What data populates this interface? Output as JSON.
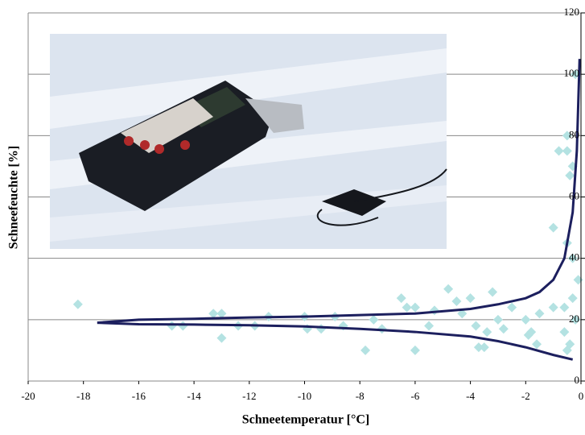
{
  "chart_data": {
    "type": "scatter",
    "xlabel": "Schneetemperatur [°C]",
    "ylabel": "Schneefeuchte [%]",
    "xlim": [
      -20,
      0
    ],
    "ylim": [
      0,
      120
    ],
    "xticks": [
      -20,
      -18,
      -16,
      -14,
      -12,
      -10,
      -8,
      -6,
      -4,
      -2,
      0
    ],
    "yticks": [
      0,
      20,
      40,
      60,
      80,
      100,
      120
    ],
    "grid": true,
    "series": [
      {
        "type": "scatter",
        "color": "#b4e2e2",
        "x": [
          -18.2,
          -14.8,
          -14.4,
          -13.3,
          -13.0,
          -13.0,
          -12.4,
          -11.8,
          -11.3,
          -10.0,
          -9.9,
          -9.4,
          -8.9,
          -8.6,
          -7.8,
          -7.5,
          -7.2,
          -6.5,
          -6.3,
          -6.0,
          -6.0,
          -5.5,
          -5.3,
          -4.8,
          -4.5,
          -4.3,
          -4.0,
          -3.8,
          -3.7,
          -3.5,
          -3.4,
          -3.2,
          -3.0,
          -2.8,
          -2.5,
          -2.0,
          -1.9,
          -1.8,
          -1.6,
          -1.5,
          -1.0,
          -1.0,
          -0.8,
          -0.5,
          -0.5,
          -0.4,
          -0.3,
          -0.5,
          -0.3,
          -0.2,
          -0.4,
          -0.5,
          -0.2,
          -0.1,
          -0.3,
          -0.6,
          -0.6
        ],
        "values": [
          25,
          18,
          18,
          22,
          22,
          14,
          18,
          18,
          21,
          21,
          17,
          17,
          21,
          18,
          10,
          20,
          17,
          27,
          24,
          24,
          10,
          18,
          23,
          30,
          26,
          22,
          27,
          18,
          11,
          11,
          16,
          29,
          20,
          17,
          24,
          20,
          15,
          16,
          12,
          22,
          24,
          50,
          75,
          75,
          80,
          67,
          40,
          45,
          27,
          20,
          12,
          10,
          100,
          33,
          70,
          16,
          24
        ]
      },
      {
        "type": "line",
        "color": "#1c1f5e",
        "x": [
          -17.5,
          -16,
          -14,
          -12,
          -10,
          -8,
          -6,
          -4,
          -3,
          -2,
          -1.5,
          -1,
          -0.6,
          -0.3,
          -0.15,
          -0.05
        ],
        "values": [
          19,
          20,
          20.3,
          20.7,
          21,
          21.5,
          22,
          23.5,
          25,
          27,
          29,
          33,
          40,
          55,
          75,
          105
        ]
      },
      {
        "type": "line",
        "color": "#1c1f5e",
        "x": [
          -17.5,
          -16,
          -14,
          -12,
          -10,
          -8,
          -6,
          -4,
          -3,
          -2,
          -1,
          -0.3
        ],
        "values": [
          19,
          18.5,
          18.4,
          18.2,
          17.8,
          17,
          16,
          14.5,
          13,
          11,
          8.5,
          7
        ]
      }
    ]
  }
}
